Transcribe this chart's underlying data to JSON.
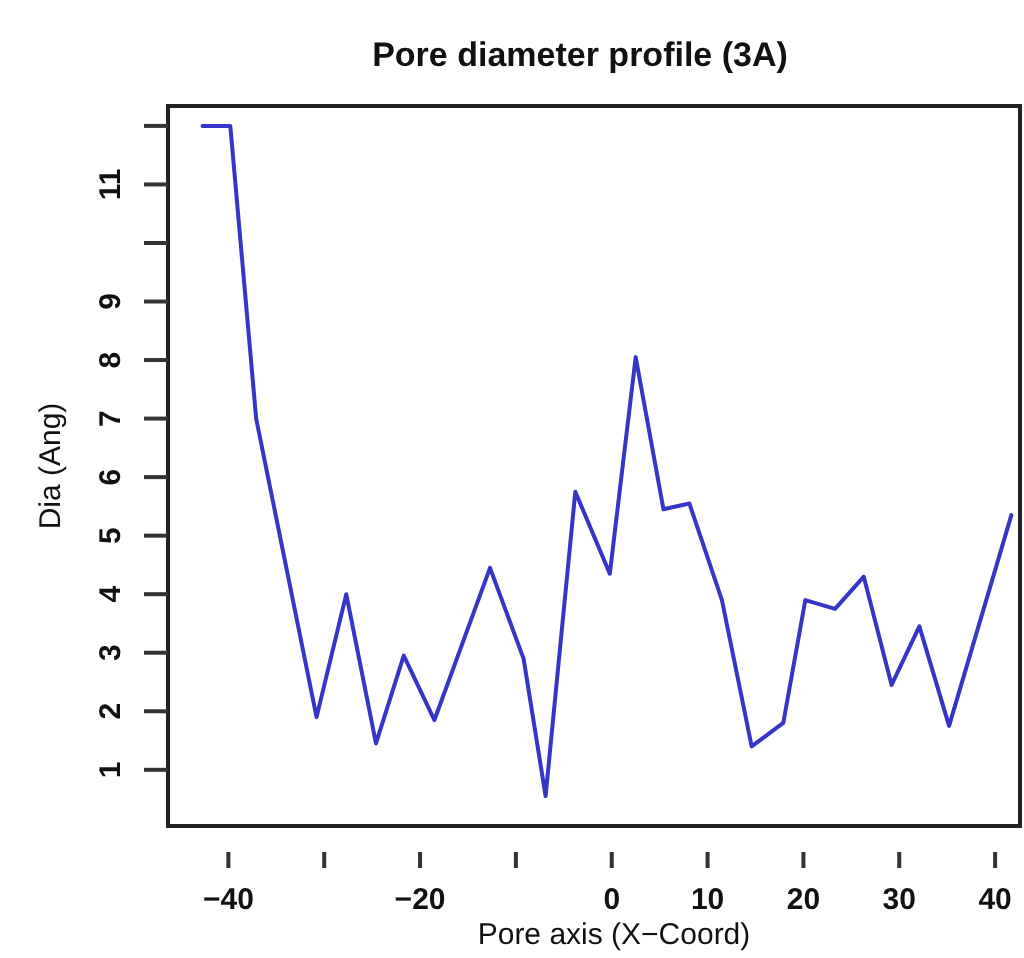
{
  "chart_data": {
    "type": "line",
    "title": "Pore diameter profile (3A)",
    "xlabel": "Pore axis (X−Coord)",
    "ylabel": "Dia (Ang)",
    "xlim": [
      -46.3,
      42.6
    ],
    "ylim": [
      0.04,
      12.34
    ],
    "xticks": [
      -40,
      {
        "value": -30,
        "label": null
      },
      -20,
      {
        "value": -10,
        "label": null
      },
      0,
      10,
      20,
      30,
      40
    ],
    "yticks": [
      1,
      2,
      3,
      4,
      5,
      6,
      7,
      8,
      9,
      {
        "value": 10,
        "label": null
      },
      11,
      {
        "value": 12,
        "label": null
      }
    ],
    "grid": false,
    "marker": "none",
    "line_style": "solid",
    "series": [
      {
        "color": "#3535c8",
        "x": [
          -42.7,
          -39.8,
          -37.1,
          -30.8,
          -27.7,
          -24.6,
          -21.7,
          -18.5,
          -12.7,
          -9.2,
          -6.9,
          -3.8,
          -0.2,
          2.5,
          5.4,
          8.1,
          11.5,
          14.6,
          17.9,
          20.2,
          23.3,
          26.3,
          29.2,
          32.1,
          35.2,
          41.7
        ],
        "values": [
          12.0,
          12.0,
          7.0,
          1.9,
          4.0,
          1.45,
          2.95,
          1.85,
          4.45,
          2.9,
          0.55,
          5.75,
          4.35,
          8.05,
          5.45,
          5.55,
          3.9,
          1.4,
          1.8,
          3.9,
          3.75,
          4.3,
          2.45,
          3.45,
          1.75,
          5.35
        ]
      }
    ]
  }
}
